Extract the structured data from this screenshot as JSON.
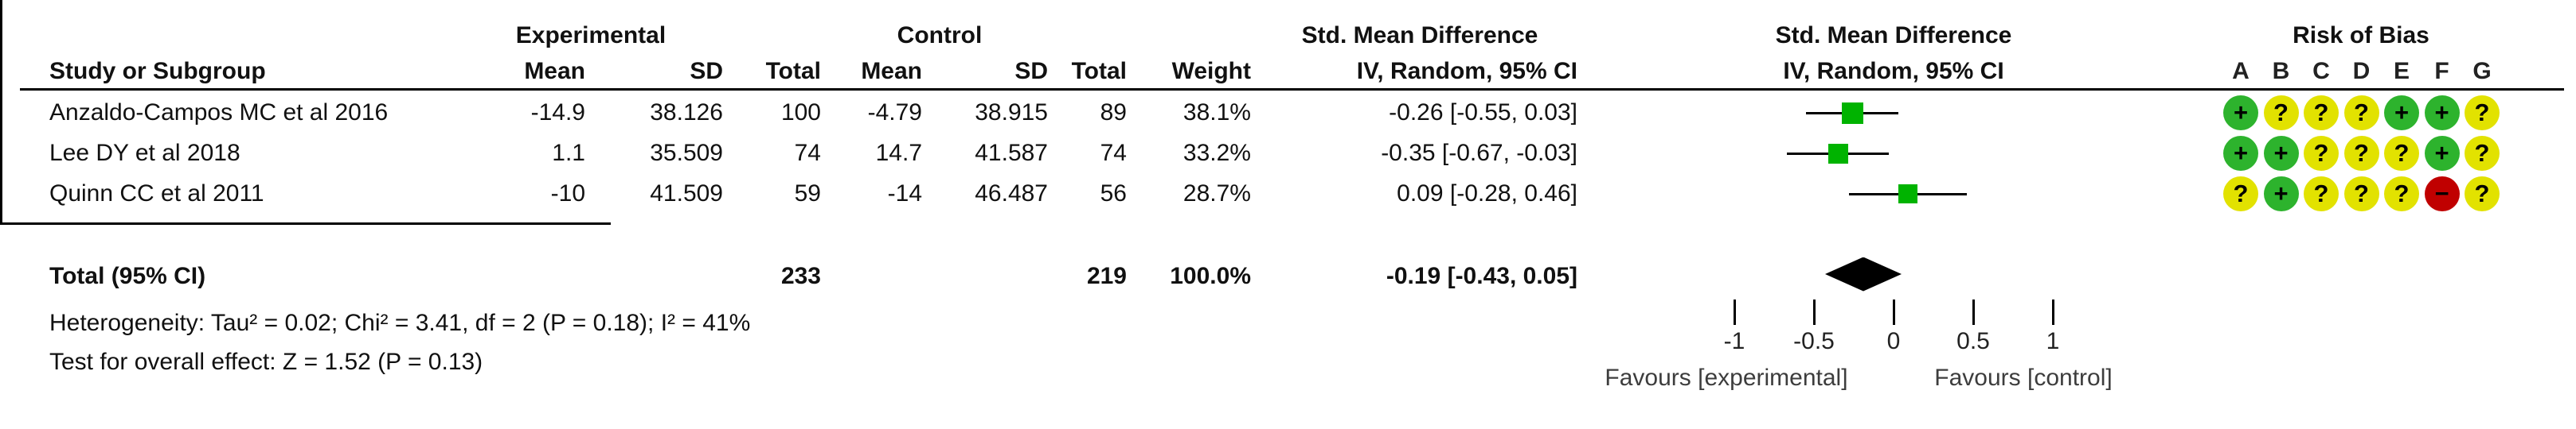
{
  "header": {
    "experimental": "Experimental",
    "control": "Control",
    "smd_col_title": "Std. Mean Difference",
    "smd_col_subtitle": "IV, Random, 95% CI",
    "smd_graph_title": "Std. Mean Difference",
    "smd_graph_subtitle": "IV, Random, 95% CI",
    "risk_of_bias_title": "Risk of Bias",
    "study_col": "Study or Subgroup",
    "mean_col": "Mean",
    "sd_col": "SD",
    "total_col": "Total",
    "weight_col": "Weight"
  },
  "studies": [
    {
      "name": "Anzaldo-Campos MC et al 2016",
      "exp_mean": "-14.9",
      "exp_sd": "38.126",
      "exp_total": "100",
      "ctl_mean": "-4.79",
      "ctl_sd": "38.915",
      "ctl_total": "89",
      "weight": "38.1%",
      "ci_text": "-0.26 [-0.55, 0.03]",
      "est": -0.26,
      "lo": -0.55,
      "hi": 0.03,
      "weight_pct": 38.1,
      "risk_of_bias": [
        "low",
        "unclear",
        "unclear",
        "unclear",
        "low",
        "low",
        "unclear"
      ]
    },
    {
      "name": "Lee DY et al 2018",
      "exp_mean": "1.1",
      "exp_sd": "35.509",
      "exp_total": "74",
      "ctl_mean": "14.7",
      "ctl_sd": "41.587",
      "ctl_total": "74",
      "weight": "33.2%",
      "ci_text": "-0.35 [-0.67, -0.03]",
      "est": -0.35,
      "lo": -0.67,
      "hi": -0.03,
      "weight_pct": 33.2,
      "risk_of_bias": [
        "low",
        "low",
        "unclear",
        "unclear",
        "unclear",
        "low",
        "unclear"
      ]
    },
    {
      "name": "Quinn CC et al 2011",
      "exp_mean": "-10",
      "exp_sd": "41.509",
      "exp_total": "59",
      "ctl_mean": "-14",
      "ctl_sd": "46.487",
      "ctl_total": "56",
      "weight": "28.7%",
      "ci_text": "0.09 [-0.28, 0.46]",
      "est": 0.09,
      "lo": -0.28,
      "hi": 0.46,
      "weight_pct": 28.7,
      "risk_of_bias": [
        "unclear",
        "low",
        "unclear",
        "unclear",
        "unclear",
        "high",
        "unclear"
      ]
    }
  ],
  "total": {
    "label": "Total (95% CI)",
    "exp_total": "233",
    "ctl_total": "219",
    "weight": "100.0%",
    "ci_text": "-0.19 [-0.43, 0.05]",
    "est": -0.19,
    "lo": -0.43,
    "hi": 0.05
  },
  "footnotes": {
    "heterogeneity": "Heterogeneity: Tau² = 0.02; Chi² = 3.41, df = 2 (P = 0.18); I² = 41%",
    "overall_effect": "Test for overall effect: Z = 1.52 (P = 0.13)"
  },
  "axis": {
    "ticks": [
      "-1",
      "-0.5",
      "0",
      "0.5",
      "1"
    ],
    "tick_values": [
      -1,
      -0.5,
      0,
      0.5,
      1
    ],
    "favours_left": "Favours [experimental]",
    "favours_right": "Favours [control]"
  },
  "risk_of_bias": {
    "domains": [
      "A",
      "B",
      "C",
      "D",
      "E",
      "F",
      "G"
    ],
    "colors": {
      "low": "#2db32d",
      "unclear": "#e2e200",
      "high": "#c00000"
    },
    "symbols": {
      "low": "+",
      "unclear": "?",
      "high": "−"
    }
  },
  "marker_color": "#00b300",
  "chart_data": {
    "type": "scatter",
    "subtype": "forest-plot",
    "title": "Std. Mean Difference",
    "subtitle": "IV, Random, 95% CI",
    "studies": [
      "Anzaldo-Campos MC et al 2016",
      "Lee DY et al 2018",
      "Quinn CC et al 2011"
    ],
    "estimates": [
      -0.26,
      -0.35,
      0.09
    ],
    "ci_low": [
      -0.55,
      -0.67,
      -0.28
    ],
    "ci_high": [
      0.03,
      -0.03,
      0.46
    ],
    "weights_pct": [
      38.1,
      33.2,
      28.7
    ],
    "total": {
      "label": "Total (95% CI)",
      "estimate": -0.19,
      "ci_low": -0.43,
      "ci_high": 0.05,
      "weight_pct": 100.0
    },
    "xticks": [
      -1,
      -0.5,
      0,
      0.5,
      1
    ],
    "xlim": [
      -1.9,
      1.94
    ],
    "xlabel_left": "Favours [experimental]",
    "xlabel_right": "Favours [control]",
    "grid": false,
    "legend": false
  }
}
